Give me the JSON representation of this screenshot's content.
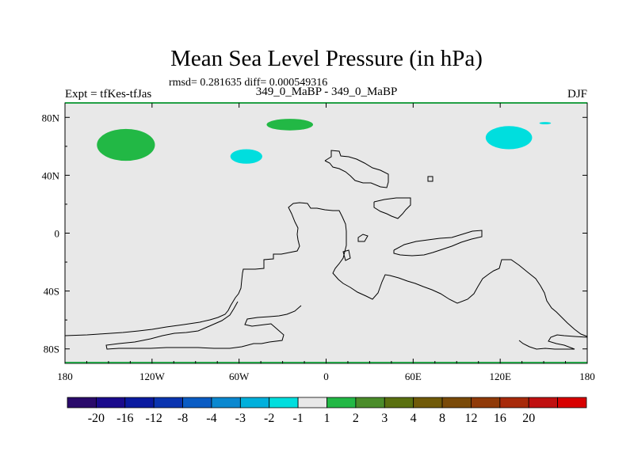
{
  "title": "Mean Sea Level Pressure (in hPa)",
  "stats": "rmsd= 0.281635 diff= 0.000549316",
  "experiment_left": "Expt = tfKes-tfJas",
  "experiment_center": "349_0_MaBP - 349_0_MaBP",
  "season": "DJF",
  "colors": {
    "background": "#e8e8e8",
    "green_anomaly": "#22b845",
    "cyan_anomaly": "#00dede",
    "frame_green": "#22a045"
  },
  "chart_data": {
    "type": "map",
    "projection": "cylindrical-equidistant",
    "x_range": [
      -180,
      180
    ],
    "y_range": [
      -90,
      90
    ],
    "x_ticks": [
      {
        "lon": -180,
        "label": "180"
      },
      {
        "lon": -120,
        "label": "120W"
      },
      {
        "lon": -60,
        "label": "60W"
      },
      {
        "lon": 0,
        "label": "0"
      },
      {
        "lon": 60,
        "label": "60E"
      },
      {
        "lon": 120,
        "label": "120E"
      },
      {
        "lon": 180,
        "label": "180"
      }
    ],
    "y_ticks": [
      {
        "lat": 80,
        "label": "80N"
      },
      {
        "lat": 40,
        "label": "40N"
      },
      {
        "lat": 0,
        "label": "0"
      },
      {
        "lat": -40,
        "label": "40S"
      },
      {
        "lat": -80,
        "label": "80S"
      }
    ],
    "anomaly_regions": [
      {
        "name": "anomaly-north-pacific",
        "color": "green",
        "center": [
          -138,
          61
        ],
        "radius": [
          20,
          11
        ]
      },
      {
        "name": "anomaly-north-atlantic-east",
        "color": "green",
        "center": [
          -25,
          75
        ],
        "radius": [
          16,
          4
        ]
      },
      {
        "name": "anomaly-north-atlantic",
        "color": "cyan",
        "center": [
          -55,
          53
        ],
        "radius": [
          11,
          5
        ]
      },
      {
        "name": "anomaly-siberia",
        "color": "cyan",
        "center": [
          126,
          66
        ],
        "radius": [
          16,
          8
        ]
      },
      {
        "name": "anomaly-arctic-small",
        "color": "cyan",
        "center": [
          151,
          76
        ],
        "radius": [
          4,
          0.8
        ]
      }
    ],
    "colorbar": {
      "colors": [
        "#2a0a6b",
        "#1a0a8c",
        "#0a1aa0",
        "#0a34b0",
        "#0a5cc4",
        "#0a88d0",
        "#00b0dc",
        "#00dede",
        "#e8e8e8",
        "#22b845",
        "#4a8c2a",
        "#5a7010",
        "#705a08",
        "#7a4a08",
        "#903a08",
        "#a82a0a",
        "#c01010",
        "#d80000"
      ],
      "labels": [
        "-20",
        "-16",
        "-12",
        "-8",
        "-4",
        "-3",
        "-2",
        "-1",
        "1",
        "2",
        "3",
        "4",
        "8",
        "12",
        "16",
        "20"
      ]
    }
  }
}
